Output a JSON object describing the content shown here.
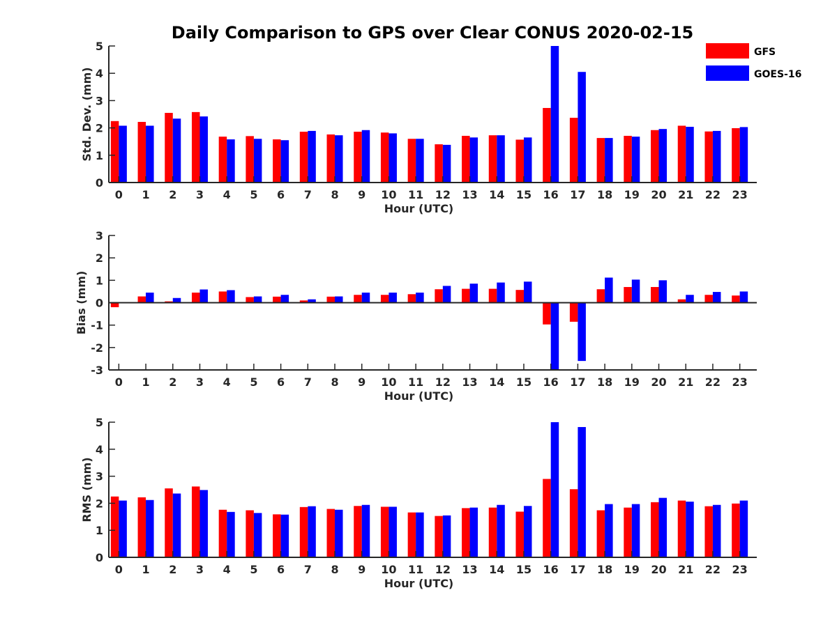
{
  "chart_data": {
    "title": "Daily Comparison to GPS over Clear CONUS 2020-02-15",
    "legend": {
      "placement": "top-right",
      "entries": [
        {
          "name": "GFS",
          "color": "#ff0000"
        },
        {
          "name": "GOES-16",
          "color": "#0000ff"
        }
      ]
    },
    "panels": [
      {
        "type": "bar",
        "ylabel": "Std. Dev. (mm)",
        "xlabel": "Hour (UTC)",
        "ylim": [
          0,
          5
        ],
        "yticks": [
          0,
          1,
          2,
          3,
          4,
          5
        ],
        "categories": [
          "0",
          "1",
          "2",
          "3",
          "4",
          "5",
          "6",
          "7",
          "8",
          "9",
          "10",
          "11",
          "12",
          "13",
          "14",
          "15",
          "16",
          "17",
          "18",
          "19",
          "20",
          "21",
          "22",
          "23"
        ],
        "series": [
          {
            "name": "GFS",
            "color": "#ff0000",
            "values": [
              2.25,
              2.22,
              2.55,
              2.58,
              1.68,
              1.7,
              1.58,
              1.86,
              1.76,
              1.86,
              1.83,
              1.6,
              1.4,
              1.71,
              1.73,
              1.57,
              2.73,
              2.37,
              1.63,
              1.71,
              1.92,
              2.08,
              1.87,
              1.99
            ]
          },
          {
            "name": "GOES-16",
            "color": "#0000ff",
            "values": [
              2.08,
              2.08,
              2.34,
              2.42,
              1.58,
              1.6,
              1.55,
              1.89,
              1.73,
              1.92,
              1.8,
              1.6,
              1.38,
              1.65,
              1.73,
              1.65,
              5.0,
              4.05,
              1.63,
              1.68,
              1.96,
              2.04,
              1.89,
              2.03
            ]
          }
        ]
      },
      {
        "type": "bar",
        "ylabel": "Bias (mm)",
        "xlabel": "Hour (UTC)",
        "ylim": [
          -3,
          3
        ],
        "yticks": [
          -3,
          -2,
          -1,
          0,
          1,
          2,
          3
        ],
        "zero_line": true,
        "categories": [
          "0",
          "1",
          "2",
          "3",
          "4",
          "5",
          "6",
          "7",
          "8",
          "9",
          "10",
          "11",
          "12",
          "13",
          "14",
          "15",
          "16",
          "17",
          "18",
          "19",
          "20",
          "21",
          "22",
          "23"
        ],
        "series": [
          {
            "name": "GFS",
            "color": "#ff0000",
            "values": [
              -0.2,
              0.28,
              0.06,
              0.45,
              0.5,
              0.25,
              0.27,
              0.1,
              0.27,
              0.35,
              0.35,
              0.38,
              0.6,
              0.62,
              0.62,
              0.57,
              -0.97,
              -0.85,
              0.6,
              0.7,
              0.7,
              0.15,
              0.35,
              0.32
            ]
          },
          {
            "name": "GOES-16",
            "color": "#0000ff",
            "values": [
              0.0,
              0.45,
              0.21,
              0.59,
              0.56,
              0.28,
              0.35,
              0.15,
              0.28,
              0.45,
              0.45,
              0.45,
              0.75,
              0.85,
              0.9,
              0.94,
              -3.0,
              -2.6,
              1.12,
              1.03,
              1.0,
              0.35,
              0.48,
              0.5
            ]
          }
        ]
      },
      {
        "type": "bar",
        "ylabel": "RMS (mm)",
        "xlabel": "Hour (UTC)",
        "ylim": [
          0,
          5
        ],
        "yticks": [
          0,
          1,
          2,
          3,
          4,
          5
        ],
        "categories": [
          "0",
          "1",
          "2",
          "3",
          "4",
          "5",
          "6",
          "7",
          "8",
          "9",
          "10",
          "11",
          "12",
          "13",
          "14",
          "15",
          "16",
          "17",
          "18",
          "19",
          "20",
          "21",
          "22",
          "23"
        ],
        "series": [
          {
            "name": "GFS",
            "color": "#ff0000",
            "values": [
              2.25,
              2.22,
              2.55,
              2.62,
              1.76,
              1.74,
              1.59,
              1.86,
              1.79,
              1.9,
              1.87,
              1.66,
              1.53,
              1.82,
              1.84,
              1.69,
              2.9,
              2.52,
              1.74,
              1.84,
              2.04,
              2.1,
              1.89,
              1.99
            ]
          },
          {
            "name": "GOES-16",
            "color": "#0000ff",
            "values": [
              2.1,
              2.12,
              2.36,
              2.49,
              1.68,
              1.64,
              1.58,
              1.89,
              1.76,
              1.94,
              1.87,
              1.66,
              1.55,
              1.84,
              1.94,
              1.9,
              5.0,
              4.82,
              1.97,
              1.97,
              2.2,
              2.06,
              1.94,
              2.1
            ]
          }
        ]
      }
    ]
  }
}
